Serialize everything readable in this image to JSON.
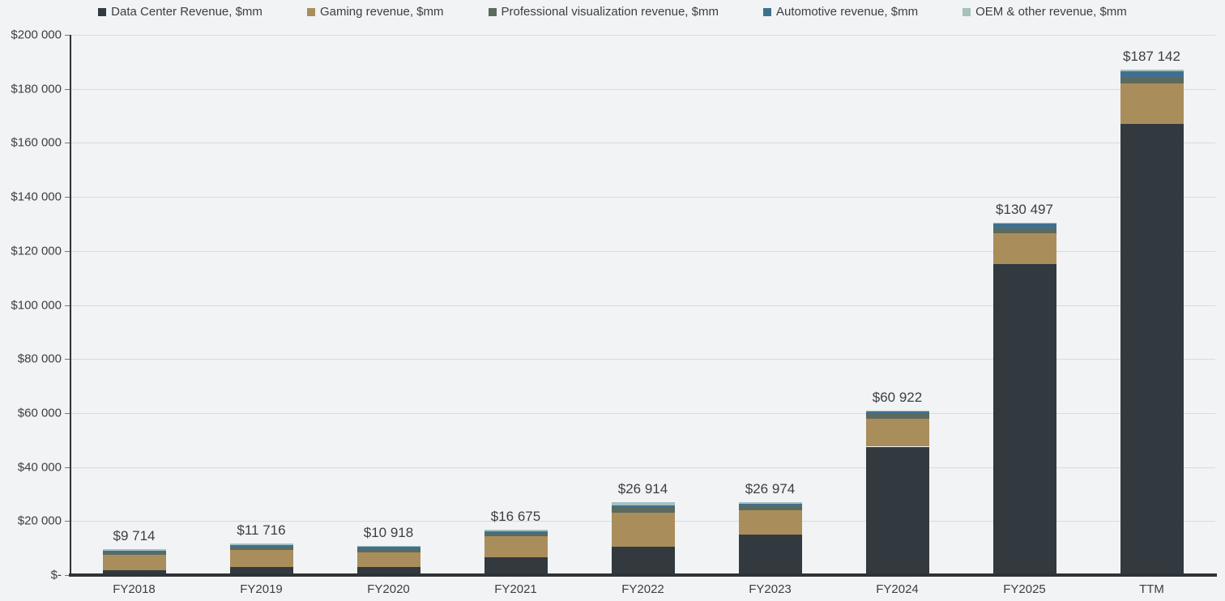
{
  "legend": {
    "items": [
      {
        "label": "Data Center Revenue, $mm",
        "color": "#323a40"
      },
      {
        "label": "Gaming revenue, $mm",
        "color": "#a98e5c"
      },
      {
        "label": "Professional visualization revenue, $mm",
        "color": "#5c6a5e"
      },
      {
        "label": "Automotive revenue, $mm",
        "color": "#40708f"
      },
      {
        "label": "OEM & other revenue, $mm",
        "color": "#a6c0bd"
      }
    ]
  },
  "y_axis": {
    "tick_labels": [
      "$200 000",
      "$180 000",
      "$160 000",
      "$140 000",
      "$120 000",
      "$100 000",
      "$80 000",
      "$60 000",
      "$40 000",
      "$20 000",
      "$-"
    ]
  },
  "chart_data": {
    "type": "bar",
    "stacked": true,
    "title": "",
    "xlabel": "",
    "ylabel": "",
    "ylim": [
      0,
      200000
    ],
    "grid_step": 20000,
    "grid": true,
    "legend_position": "top",
    "categories": [
      "FY2018",
      "FY2019",
      "FY2020",
      "FY2021",
      "FY2022",
      "FY2023",
      "FY2024",
      "FY2025",
      "TTM"
    ],
    "series": [
      {
        "name": "Data Center Revenue, $mm",
        "key": "data-center",
        "color": "#323a40",
        "values": [
          1932,
          2932,
          2983,
          6696,
          10613,
          15005,
          47525,
          115186,
          167003
        ]
      },
      {
        "name": "Gaming revenue, $mm",
        "key": "gaming",
        "color": "#a98e5c",
        "values": [
          5513,
          6246,
          5518,
          7759,
          12462,
          9067,
          10447,
          11350,
          14859
        ]
      },
      {
        "name": "Professional visualization revenue, $mm",
        "key": "professional-visualization",
        "color": "#5c6a5e",
        "values": [
          934,
          1130,
          1212,
          1053,
          2111,
          1544,
          1553,
          1878,
          2381
        ]
      },
      {
        "name": "Automotive revenue, $mm",
        "key": "automotive",
        "color": "#40708f",
        "values": [
          558,
          641,
          700,
          536,
          566,
          903,
          1091,
          1694,
          2315
        ]
      },
      {
        "name": "OEM & other revenue, $mm",
        "key": "oem-other",
        "color": "#a6c0bd",
        "values": [
          777,
          767,
          505,
          631,
          1162,
          455,
          306,
          389,
          584
        ]
      }
    ],
    "totals": [
      9714,
      11716,
      10918,
      16675,
      26914,
      26974,
      60922,
      130497,
      187142
    ],
    "total_labels": [
      "$9 714",
      "$11 716",
      "$10 918",
      "$16 675",
      "$26 914",
      "$26 974",
      "$60 922",
      "$130 497",
      "$187 142"
    ]
  }
}
